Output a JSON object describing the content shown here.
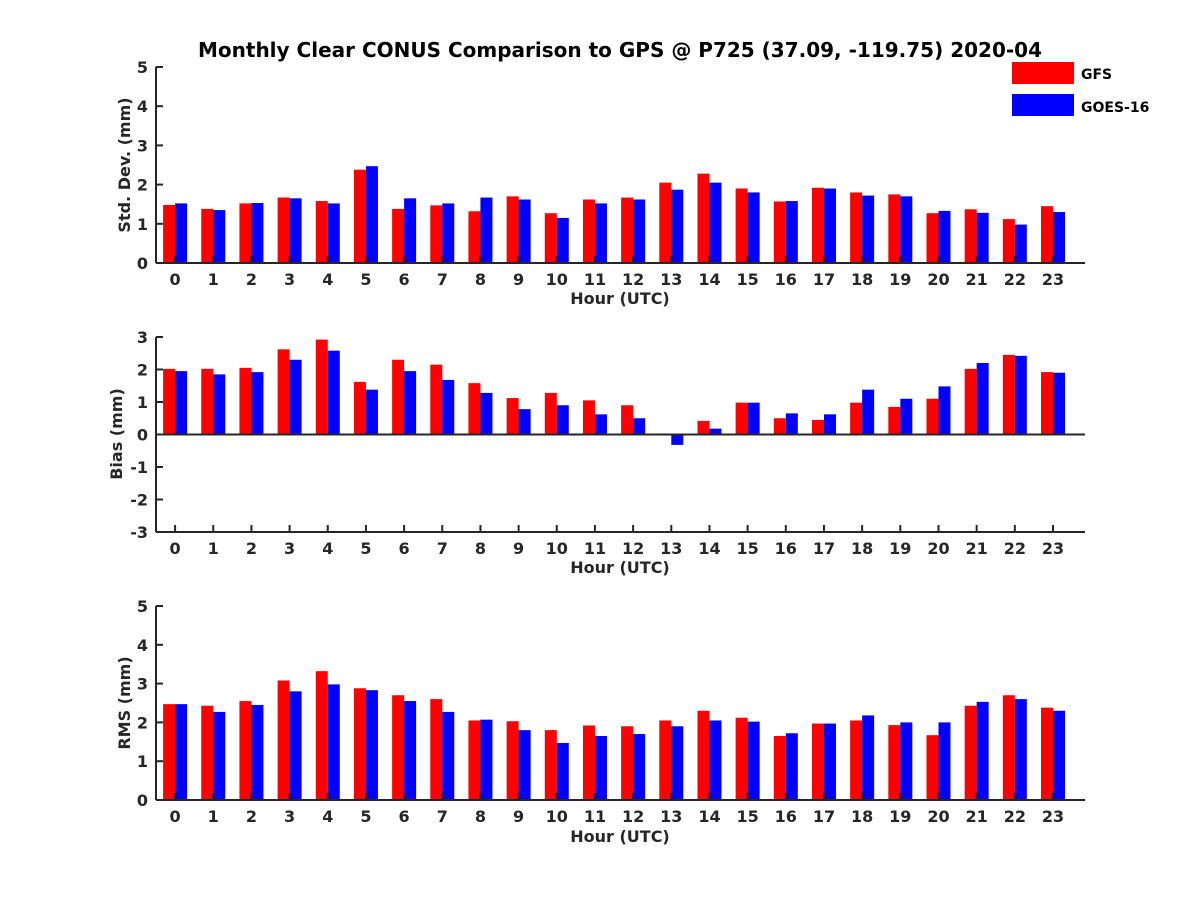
{
  "figure": {
    "title": "Monthly Clear CONUS Comparison to GPS @ P725 (37.09, -119.75) 2020-04"
  },
  "legend": {
    "items": [
      {
        "label": "GFS",
        "color": "#ff0000"
      },
      {
        "label": "GOES-16",
        "color": "#0000ff"
      }
    ]
  },
  "chart_data": [
    {
      "type": "bar",
      "title": "Monthly Clear CONUS Comparison to GPS @ P725 (37.09, -119.75) 2020-04",
      "xlabel": "Hour (UTC)",
      "ylabel": "Std. Dev. (mm)",
      "ylim": [
        0,
        5
      ],
      "yticks": [
        "0",
        "1",
        "2",
        "3",
        "4",
        "5"
      ],
      "categories": [
        "0",
        "1",
        "2",
        "3",
        "4",
        "5",
        "6",
        "7",
        "8",
        "9",
        "10",
        "11",
        "12",
        "13",
        "14",
        "15",
        "16",
        "17",
        "18",
        "19",
        "20",
        "21",
        "22",
        "23"
      ],
      "series": [
        {
          "name": "GFS",
          "color": "#ff0000",
          "values": [
            1.48,
            1.38,
            1.52,
            1.67,
            1.58,
            2.38,
            1.38,
            1.47,
            1.32,
            1.7,
            1.27,
            1.62,
            1.67,
            2.05,
            2.28,
            1.9,
            1.57,
            1.92,
            1.8,
            1.75,
            1.27,
            1.37,
            1.12,
            1.45
          ]
        },
        {
          "name": "GOES-16",
          "color": "#0000ff",
          "values": [
            1.52,
            1.35,
            1.53,
            1.65,
            1.52,
            2.47,
            1.65,
            1.52,
            1.67,
            1.62,
            1.15,
            1.52,
            1.62,
            1.87,
            2.05,
            1.8,
            1.58,
            1.9,
            1.72,
            1.7,
            1.33,
            1.28,
            0.98,
            1.3
          ]
        }
      ]
    },
    {
      "type": "bar",
      "xlabel": "Hour (UTC)",
      "ylabel": "Bias (mm)",
      "ylim": [
        -3,
        3
      ],
      "yticks": [
        "-3",
        "-2",
        "-1",
        "0",
        "1",
        "2",
        "3"
      ],
      "categories": [
        "0",
        "1",
        "2",
        "3",
        "4",
        "5",
        "6",
        "7",
        "8",
        "9",
        "10",
        "11",
        "12",
        "13",
        "14",
        "15",
        "16",
        "17",
        "18",
        "19",
        "20",
        "21",
        "22",
        "23"
      ],
      "series": [
        {
          "name": "GFS",
          "color": "#ff0000",
          "values": [
            2.02,
            2.02,
            2.05,
            2.62,
            2.92,
            1.62,
            2.3,
            2.15,
            1.58,
            1.12,
            1.28,
            1.05,
            0.9,
            0.0,
            0.42,
            0.98,
            0.5,
            0.45,
            0.98,
            0.85,
            1.1,
            2.02,
            2.45,
            1.92
          ]
        },
        {
          "name": "GOES-16",
          "color": "#0000ff",
          "values": [
            1.95,
            1.85,
            1.92,
            2.3,
            2.58,
            1.38,
            1.95,
            1.68,
            1.28,
            0.78,
            0.9,
            0.62,
            0.5,
            -0.32,
            0.18,
            0.98,
            0.65,
            0.62,
            1.38,
            1.1,
            1.48,
            2.2,
            2.42,
            1.9
          ]
        }
      ]
    },
    {
      "type": "bar",
      "xlabel": "Hour (UTC)",
      "ylabel": "RMS (mm)",
      "ylim": [
        0,
        5
      ],
      "yticks": [
        "0",
        "1",
        "2",
        "3",
        "4",
        "5"
      ],
      "categories": [
        "0",
        "1",
        "2",
        "3",
        "4",
        "5",
        "6",
        "7",
        "8",
        "9",
        "10",
        "11",
        "12",
        "13",
        "14",
        "15",
        "16",
        "17",
        "18",
        "19",
        "20",
        "21",
        "22",
        "23"
      ],
      "series": [
        {
          "name": "GFS",
          "color": "#ff0000",
          "values": [
            2.47,
            2.43,
            2.55,
            3.08,
            3.32,
            2.88,
            2.7,
            2.6,
            2.05,
            2.03,
            1.8,
            1.92,
            1.9,
            2.05,
            2.3,
            2.12,
            1.65,
            1.97,
            2.05,
            1.93,
            1.67,
            2.43,
            2.7,
            2.38
          ]
        },
        {
          "name": "GOES-16",
          "color": "#0000ff",
          "values": [
            2.47,
            2.27,
            2.45,
            2.8,
            2.98,
            2.83,
            2.55,
            2.27,
            2.07,
            1.8,
            1.47,
            1.65,
            1.7,
            1.9,
            2.05,
            2.02,
            1.72,
            1.97,
            2.18,
            2.0,
            2.0,
            2.53,
            2.6,
            2.3
          ]
        }
      ]
    }
  ]
}
